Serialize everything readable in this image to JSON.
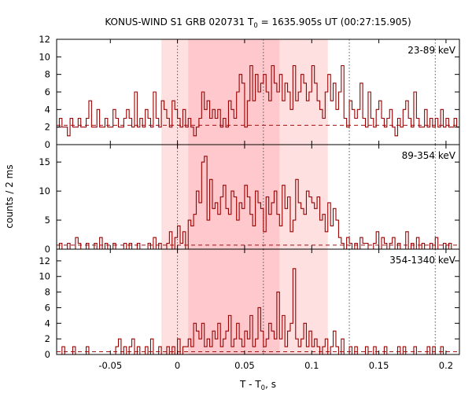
{
  "chart_data": {
    "type": "line",
    "title_main": "KONUS-WIND S1 GRB 020731 T",
    "title_sub": "0",
    "title_rest": " = 1635.905s UT (00:27:15.905)",
    "xlabel_main": "T - T",
    "xlabel_sub": "0",
    "xlabel_rest": ", s",
    "ylabel": "counts / 2 ms",
    "xlim": [
      -0.09,
      0.21
    ],
    "x_ticks": [
      -0.05,
      0,
      0.05,
      0.1,
      0.15,
      0.2
    ],
    "x_tick_labels": [
      "-0.05",
      "0",
      "0.05",
      "0.1",
      "0.15",
      "0.2"
    ],
    "bin_width": 0.002,
    "shaded_intervals": [
      {
        "start": -0.012,
        "end": 0.112
      },
      {
        "start": 0.008,
        "end": 0.076
      }
    ],
    "vertical_lines": [
      0,
      0.064,
      0.128,
      0.192
    ],
    "panels": [
      {
        "label": "23-89 keV",
        "ylim": [
          0,
          12
        ],
        "y_ticks": [
          0,
          2,
          4,
          6,
          8,
          10,
          12
        ],
        "y_tick_labels": [
          "0",
          "2",
          "4",
          "6",
          "8",
          "10",
          "12"
        ],
        "background": 2.2,
        "t0": -0.09,
        "counts": [
          2,
          3,
          2,
          2,
          1,
          3,
          2,
          2,
          3,
          2,
          2,
          3,
          5,
          2,
          2,
          4,
          2,
          2,
          3,
          2,
          2,
          4,
          3,
          2,
          2,
          3,
          4,
          3,
          2,
          6,
          2,
          3,
          2,
          4,
          3,
          2,
          6,
          3,
          2,
          5,
          4,
          3,
          2,
          5,
          4,
          3,
          2,
          4,
          2,
          3,
          2,
          1,
          2,
          3,
          6,
          4,
          5,
          3,
          4,
          3,
          4,
          2,
          3,
          2,
          5,
          4,
          3,
          6,
          8,
          7,
          2,
          5,
          9,
          5,
          8,
          6,
          7,
          8,
          6,
          5,
          9,
          7,
          6,
          8,
          5,
          7,
          6,
          4,
          9,
          5,
          6,
          8,
          7,
          5,
          6,
          9,
          7,
          5,
          4,
          3,
          6,
          8,
          5,
          7,
          4,
          6,
          9,
          3,
          2,
          5,
          4,
          3,
          4,
          7,
          3,
          2,
          6,
          3,
          2,
          4,
          5,
          3,
          2,
          3,
          4,
          2,
          1,
          3,
          2,
          4,
          5,
          3,
          2,
          6,
          3,
          2,
          2,
          4,
          2,
          3,
          2,
          3,
          2,
          4,
          2,
          3,
          2,
          2,
          3,
          2
        ]
      },
      {
        "label": "89-354 keV",
        "ylim": [
          0,
          18
        ],
        "y_ticks": [
          0,
          5,
          10,
          15
        ],
        "y_tick_labels": [
          "0",
          "5",
          "10",
          "15"
        ],
        "background": 0.7,
        "t0": -0.09,
        "counts": [
          0,
          1,
          0,
          0,
          1,
          0,
          0,
          2,
          1,
          0,
          0,
          1,
          0,
          0,
          1,
          0,
          2,
          0,
          1,
          0,
          0,
          1,
          0,
          0,
          0,
          1,
          0,
          1,
          0,
          0,
          1,
          0,
          0,
          0,
          1,
          0,
          2,
          0,
          1,
          0,
          0,
          1,
          3,
          0,
          2,
          4,
          1,
          3,
          0,
          5,
          4,
          6,
          10,
          8,
          15,
          16,
          5,
          12,
          7,
          8,
          6,
          9,
          11,
          7,
          6,
          10,
          9,
          5,
          8,
          7,
          11,
          9,
          6,
          4,
          10,
          8,
          7,
          3,
          9,
          6,
          8,
          10,
          6,
          4,
          11,
          7,
          9,
          3,
          5,
          12,
          8,
          7,
          6,
          10,
          9,
          8,
          7,
          9,
          5,
          6,
          3,
          8,
          4,
          7,
          5,
          2,
          1,
          0,
          2,
          1,
          0,
          1,
          0,
          2,
          1,
          1,
          0,
          0,
          1,
          3,
          0,
          2,
          1,
          0,
          1,
          2,
          0,
          1,
          0,
          0,
          3,
          0,
          1,
          0,
          2,
          0,
          1,
          0,
          0,
          1,
          0,
          2,
          0,
          0,
          1,
          0,
          1,
          0,
          0,
          0
        ]
      },
      {
        "label": "354-1340 keV",
        "ylim": [
          0,
          13.5
        ],
        "y_ticks": [
          0,
          2,
          4,
          6,
          8,
          10,
          12
        ],
        "y_tick_labels": [
          "0",
          "2",
          "4",
          "6",
          "8",
          "10",
          "12"
        ],
        "background": 0.35,
        "t0": -0.09,
        "counts": [
          0,
          0,
          1,
          0,
          0,
          0,
          1,
          0,
          0,
          0,
          0,
          1,
          0,
          0,
          0,
          0,
          0,
          0,
          0,
          0,
          0,
          0,
          1,
          2,
          0,
          1,
          0,
          1,
          2,
          0,
          1,
          0,
          0,
          1,
          0,
          2,
          0,
          0,
          1,
          0,
          0,
          1,
          0,
          1,
          0,
          2,
          0,
          1,
          1,
          2,
          1,
          4,
          3,
          2,
          4,
          1,
          2,
          1,
          3,
          2,
          4,
          1,
          2,
          3,
          5,
          1,
          2,
          4,
          2,
          1,
          3,
          2,
          5,
          1,
          2,
          6,
          3,
          1,
          2,
          4,
          3,
          2,
          8,
          2,
          5,
          1,
          3,
          4,
          11,
          2,
          1,
          2,
          4,
          1,
          3,
          1,
          2,
          1,
          0,
          1,
          2,
          0,
          1,
          3,
          1,
          0,
          2,
          0,
          0,
          1,
          0,
          1,
          0,
          0,
          0,
          1,
          0,
          0,
          1,
          0,
          0,
          0,
          1,
          0,
          0,
          0,
          0,
          1,
          0,
          1,
          0,
          0,
          0,
          1,
          0,
          0,
          0,
          0,
          1,
          0,
          1,
          0,
          0,
          1,
          0,
          0,
          0,
          0,
          0,
          0
        ]
      }
    ]
  }
}
